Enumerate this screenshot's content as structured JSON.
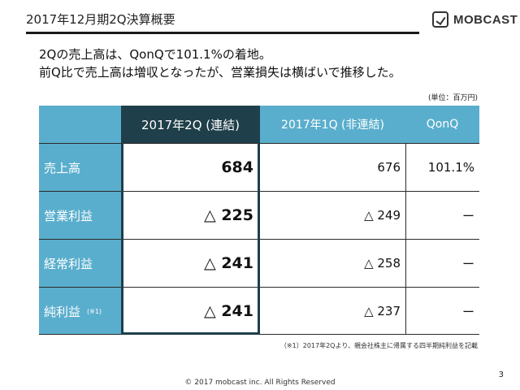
{
  "header": {
    "title": "2017年12月期2Q決算概要",
    "logo_text": "MOBCAST"
  },
  "lead": {
    "line1": "2Qの売上高は、QonQで101.1%の着地。",
    "line2": "前Q比で売上高は増収となったが、営業損失は横ばいで推移した。"
  },
  "unit_note": "(単位：百万円)",
  "table": {
    "columns": [
      "2017年2Q (連結)",
      "2017年1Q (非連結)",
      "QonQ"
    ],
    "rows": [
      {
        "label": "売上高",
        "note": "",
        "q2": "684",
        "q1": "676",
        "qoq": "101.1%"
      },
      {
        "label": "営業利益",
        "note": "",
        "q2": "△ 225",
        "q1": "△ 249",
        "qoq": "ー"
      },
      {
        "label": "経常利益",
        "note": "",
        "q2": "△ 241",
        "q1": "△ 258",
        "qoq": "ー"
      },
      {
        "label": "純利益",
        "note": "(※1)",
        "q2": "△ 241",
        "q1": "△ 237",
        "qoq": "ー"
      }
    ]
  },
  "footnote": "（※1）2017年2Qより、親会社株主に帰属する四半期純利益を記載",
  "copyright": "© 2017 mobcast inc. All Rights Reserved",
  "page_number": "3",
  "colors": {
    "header_blue": "#5aaecd",
    "highlight_dark": "#1f3f4a"
  }
}
